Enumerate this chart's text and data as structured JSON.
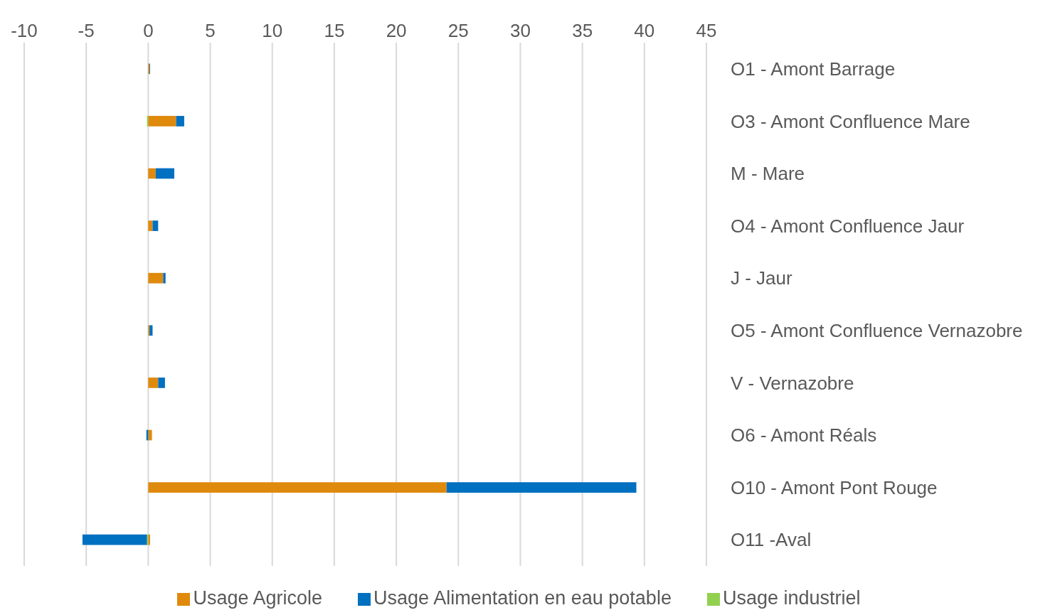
{
  "chart_data": {
    "type": "bar",
    "orientation": "horizontal",
    "stacked": true,
    "categories": [
      "O1 - Amont Barrage",
      "O3 - Amont Confluence Mare",
      "M - Mare",
      "O4 - Amont Confluence Jaur",
      "J - Jaur",
      "O5 - Amont Confluence Vernazobre",
      "V - Vernazobre",
      "O6 - Amont Réals",
      "O10 - Amont Pont Rouge",
      "O11 -Aval"
    ],
    "series": [
      {
        "name": "Usage Agricole",
        "color": "#df8a0d",
        "values": [
          0.1,
          2.25,
          0.6,
          0.35,
          1.2,
          0.1,
          0.8,
          0.3,
          24.05,
          0.15
        ]
      },
      {
        "name": "Usage industriel",
        "color": "#92d050",
        "values": [
          0,
          -0.1,
          0,
          0,
          0,
          0,
          0,
          0,
          0,
          -0.1
        ]
      },
      {
        "name": "Usage Alimentation en eau potable",
        "color": "#0070c0",
        "values": [
          0.05,
          0.65,
          1.5,
          0.45,
          0.2,
          0.25,
          0.55,
          -0.15,
          15.3,
          -5.2
        ]
      }
    ],
    "xlim": [
      -10,
      45
    ],
    "xticks": [
      -10,
      -5,
      0,
      5,
      10,
      15,
      20,
      25,
      30,
      35,
      40,
      45
    ],
    "grid": "x",
    "legend": "bottom"
  }
}
